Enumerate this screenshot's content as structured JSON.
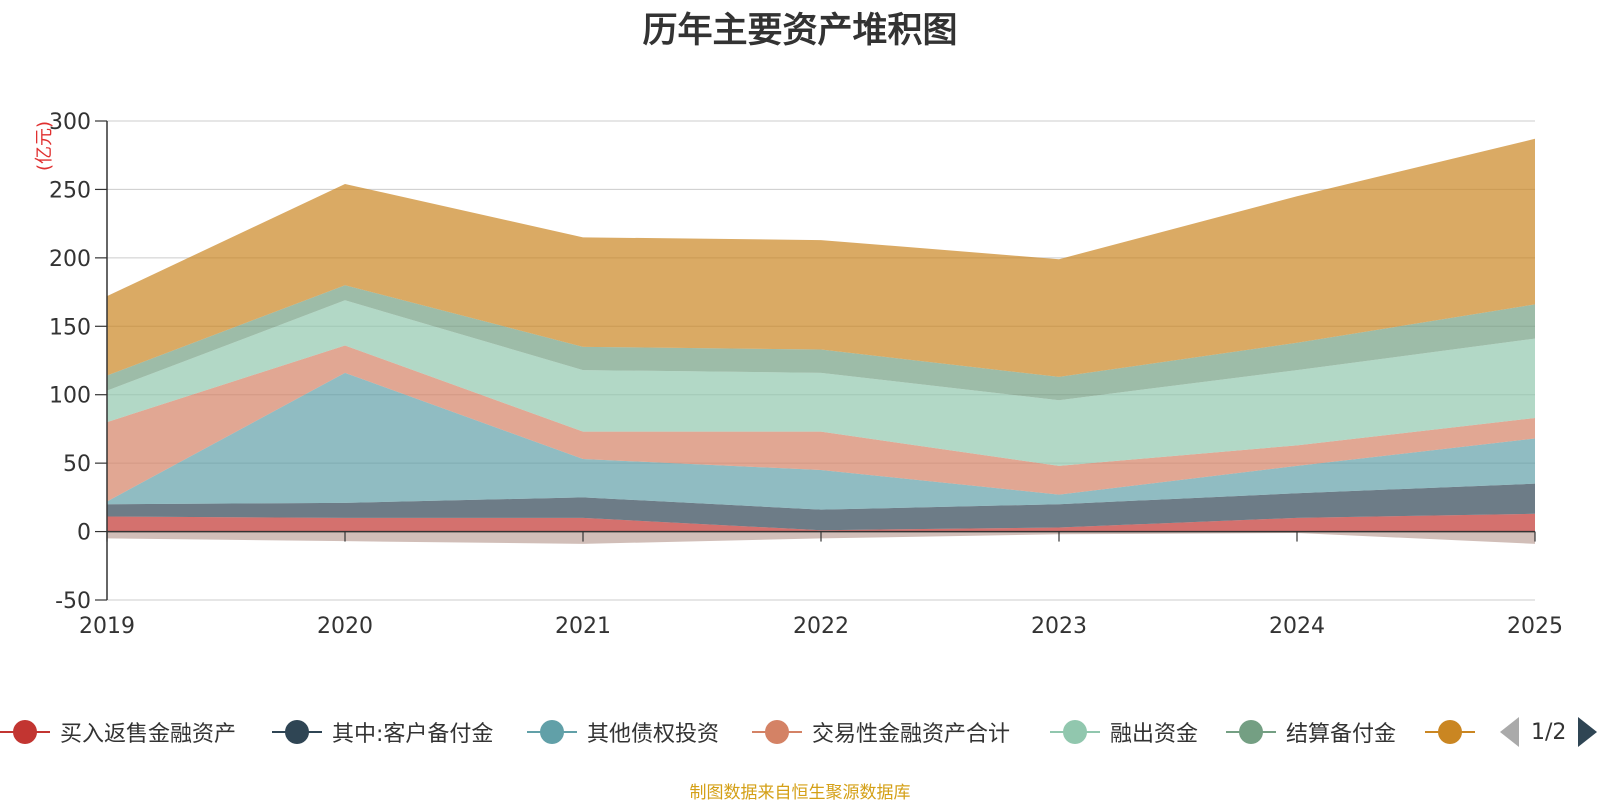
{
  "chart_data": {
    "type": "area",
    "stacked": true,
    "title": "历年主要资产堆积图",
    "ylabel": "(亿元)",
    "xlabel": "",
    "x": [
      "2019",
      "2020",
      "2021",
      "2022",
      "2023",
      "2024",
      "2025"
    ],
    "ylim": [
      -50,
      300
    ],
    "yticks": [
      300,
      250,
      200,
      150,
      100,
      50,
      0,
      -50
    ],
    "grid": true,
    "series": [
      {
        "name": "买入返售金融资产",
        "color": "#c23531",
        "values": [
          11,
          10,
          10,
          1,
          3,
          10,
          13
        ]
      },
      {
        "name": "其中:客户备付金",
        "color": "#2f4554",
        "values": [
          9,
          11,
          15,
          15,
          17,
          18,
          22
        ]
      },
      {
        "name": "其他债权投资",
        "color": "#61a0a8",
        "values": [
          2,
          95,
          28,
          29,
          7,
          20,
          33
        ]
      },
      {
        "name": "交易性金融资产合计",
        "color": "#d48265",
        "values": [
          58,
          20,
          20,
          28,
          21,
          15,
          15
        ]
      },
      {
        "name": "融出资金",
        "color": "#91c7ae",
        "values": [
          23,
          33,
          45,
          43,
          48,
          55,
          58
        ]
      },
      {
        "name": "结算备付金",
        "color": "#749f83",
        "values": [
          11,
          11,
          17,
          17,
          17,
          20,
          25
        ]
      },
      {
        "name": "",
        "color": "#ca8622",
        "values": [
          58,
          74,
          80,
          80,
          86,
          107,
          121
        ]
      },
      {
        "name": "",
        "color": "#bda29a",
        "values": [
          -5,
          -7,
          -9,
          -5,
          -2,
          -1,
          -9
        ]
      }
    ],
    "legend": {
      "position": "bottom",
      "page": "1/2"
    }
  },
  "source_note": "制图数据来自恒生聚源数据库"
}
